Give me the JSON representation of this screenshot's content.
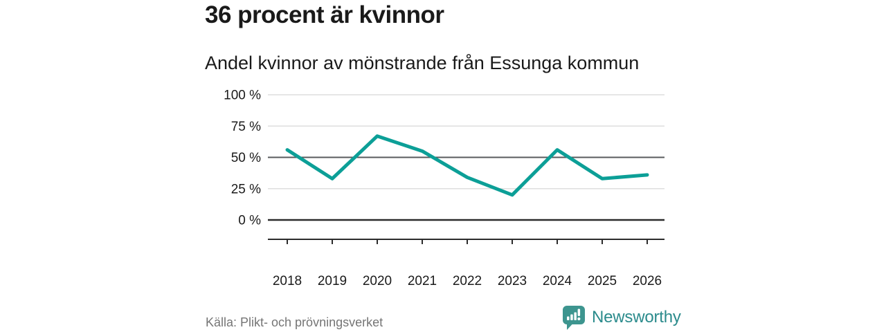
{
  "chart_data": {
    "type": "line",
    "title": "36 procent är kvinnor",
    "subtitle": "Andel kvinnor av mönstrande från Essunga kommun",
    "x": [
      "2018",
      "2019",
      "2020",
      "2021",
      "2022",
      "2023",
      "2024",
      "2025",
      "2026"
    ],
    "series": [
      {
        "name": "Andel kvinnor av mönstrande",
        "values": [
          56,
          33,
          67,
          55,
          34,
          20,
          56,
          33,
          36
        ]
      }
    ],
    "unit": "%",
    "ylim": [
      0,
      100
    ],
    "yticks": [
      {
        "value": 100,
        "label": "100 %"
      },
      {
        "value": 75,
        "label": "75 %"
      },
      {
        "value": 50,
        "label": "50 %"
      },
      {
        "value": 25,
        "label": "25 %"
      },
      {
        "value": 0,
        "label": "0 %"
      }
    ],
    "grid": "horizontal",
    "legend": false
  },
  "footer": {
    "source_label": "Källa: Plikt- och prövningsverket",
    "brand_name": "Newsworthy"
  },
  "colors": {
    "line": "#0c9f97",
    "brand_teal": "#2b8b8c",
    "logo_icon_fill": "#3d958f",
    "text_dark": "#1a1a1a",
    "text_muted": "#757575",
    "grid_light": "#dedede",
    "grid_mid": "#585a5c",
    "axis_dark": "#2b2b2b"
  }
}
